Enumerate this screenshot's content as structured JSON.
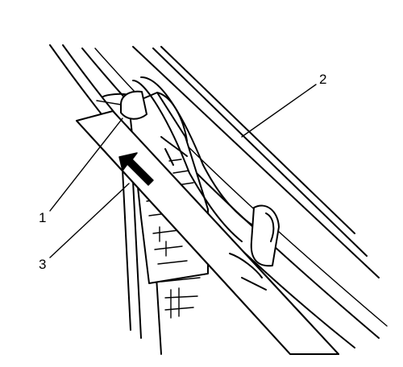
{
  "callouts": [
    {
      "id": "callout-1",
      "label": "1"
    },
    {
      "id": "callout-2",
      "label": "2"
    },
    {
      "id": "callout-3",
      "label": "3"
    }
  ],
  "colors": {
    "line": "#000000",
    "background": "#ffffff"
  }
}
